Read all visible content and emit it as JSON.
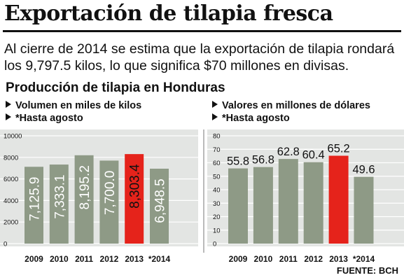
{
  "title": "Exportación de tilapia fresca",
  "lead": "Al cierre de 2014 se estima que la exportación de tilapia rondará los 9,797.5 kilos, lo que significa $70 millones en divisas.",
  "subtitle": "Producción de tilapia en Honduras",
  "source": "FUENTE: BCH",
  "colors": {
    "bar": "#8e9a86",
    "highlight": "#e5231b",
    "panel": "#e3e5e3",
    "divider": "#8c8c8c"
  },
  "chart_data": [
    {
      "type": "bar",
      "notes": [
        "Volumen en miles de kilos",
        "*Hasta agosto"
      ],
      "categories": [
        "2009",
        "2010",
        "2011",
        "2012",
        "2013",
        "*2014"
      ],
      "values": [
        7125.9,
        7333.1,
        8195.2,
        7700.0,
        8303.4,
        6948.5
      ],
      "value_labels": [
        "7,125.9",
        "7,333.1",
        "8,195.2",
        "7,700.0",
        "8,303.4",
        "6,948.5"
      ],
      "yticks": [
        "0",
        "2000",
        "4000",
        "6000",
        "8000",
        "10000"
      ],
      "ylim": [
        0,
        10000
      ],
      "highlight_index": 4,
      "label_orientation": "vertical"
    },
    {
      "type": "bar",
      "notes": [
        "Valores en millones de dólares",
        "*Hasta agosto"
      ],
      "categories": [
        "2009",
        "2010",
        "2011",
        "2012",
        "2013",
        "*2014"
      ],
      "values": [
        55.8,
        56.8,
        62.8,
        60.4,
        65.2,
        49.6
      ],
      "value_labels": [
        "55.8",
        "56.8",
        "62.8",
        "60.4",
        "65.2",
        "49.6"
      ],
      "yticks": [
        "0",
        "10",
        "20",
        "30",
        "40",
        "50",
        "60",
        "70",
        "80"
      ],
      "ylim": [
        0,
        80
      ],
      "highlight_index": 4,
      "label_orientation": "horizontal"
    }
  ]
}
